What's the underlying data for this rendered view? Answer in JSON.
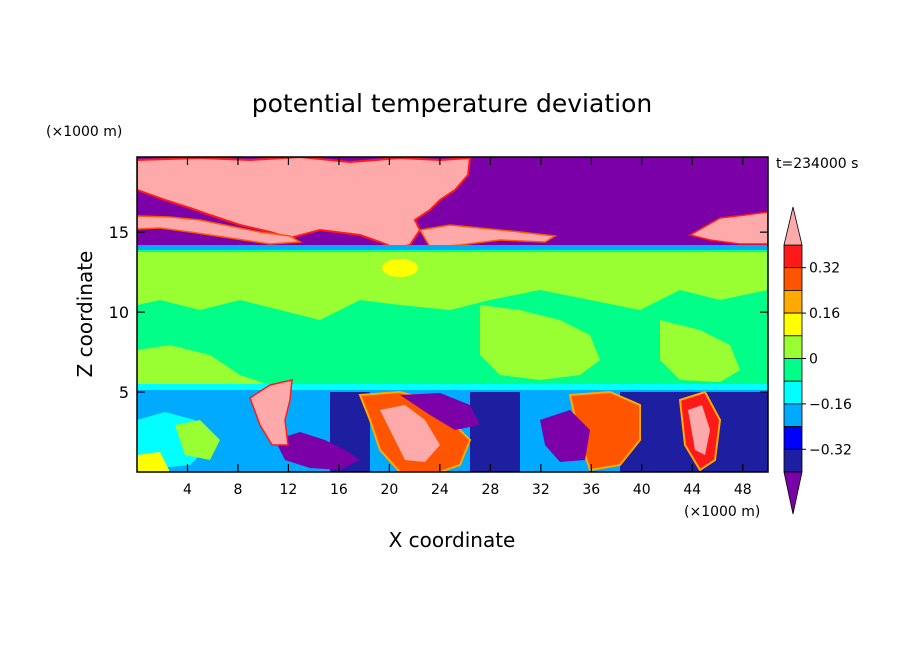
{
  "chart_data": {
    "type": "heatmap",
    "title": "potential temperature deviation",
    "xlabel": "X coordinate",
    "ylabel": "Z coordinate",
    "x_unit": "(×1000 m)",
    "y_unit": "(×1000 m)",
    "time_label": "t=234000 s",
    "xlim": [
      0,
      50
    ],
    "ylim": [
      0,
      19.7
    ],
    "x_ticks": [
      4,
      8,
      12,
      16,
      20,
      24,
      28,
      32,
      36,
      40,
      44,
      48
    ],
    "y_ticks": [
      5,
      10,
      15
    ],
    "colorbar": {
      "ticks": [
        0.32,
        0.16,
        0,
        -0.16,
        -0.32
      ],
      "tick_labels": [
        "0.32",
        "0.16",
        "0",
        "−0.16",
        "−0.32"
      ],
      "levels": [
        -0.4,
        -0.32,
        -0.24,
        -0.16,
        -0.08,
        0,
        0.08,
        0.16,
        0.24,
        0.32,
        0.4
      ],
      "colors": [
        "#7b00a8",
        "#1e1ea0",
        "#0000ff",
        "#00aaff",
        "#00ffff",
        "#00ff88",
        "#99ff33",
        "#ffff00",
        "#ffaa00",
        "#ff5500",
        "#ff1a1a",
        "#ffaaaa"
      ],
      "extend": "both"
    },
    "layers": [
      {
        "z_range": [
          14.2,
          19.7
        ],
        "dominant_value": "<-0.4 / >0.4 mixed"
      },
      {
        "z_range": [
          5.3,
          14.2
        ],
        "dominant_value": "0 to 0.08"
      },
      {
        "z_range": [
          0,
          5.3
        ],
        "dominant_value": "turbulent mixed"
      }
    ]
  }
}
